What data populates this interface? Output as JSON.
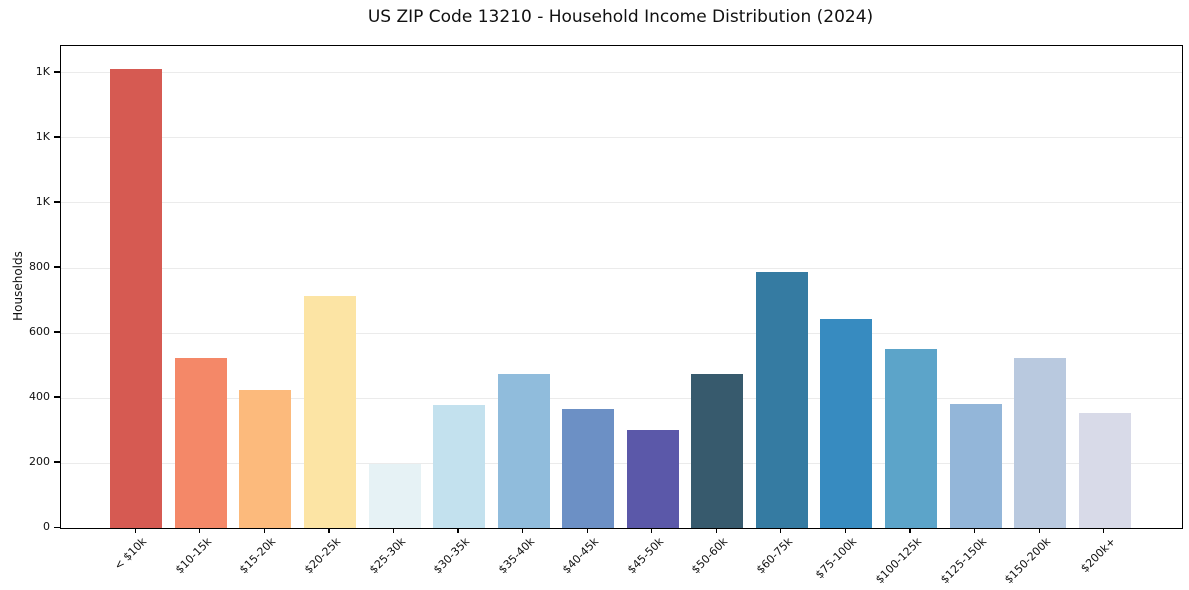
{
  "page": {
    "background": "#ffffff"
  },
  "chart_data": {
    "type": "bar",
    "title": "US ZIP Code 13210 - Household Income Distribution (2024)",
    "xlabel": "",
    "ylabel": "Households",
    "categories": [
      "< $10k",
      "$10-15k",
      "$15-20k",
      "$20-25k",
      "$25-30k",
      "$30-35k",
      "$35-40k",
      "$40-45k",
      "$45-50k",
      "$50-60k",
      "$60-75k",
      "$75-100k",
      "$100-125k",
      "$125-150k",
      "$150-200k",
      "$200k+"
    ],
    "values": [
      1412,
      523,
      425,
      715,
      196,
      378,
      475,
      366,
      302,
      475,
      788,
      644,
      551,
      381,
      523,
      354
    ],
    "bar_colors": [
      "#d65a52",
      "#f48868",
      "#fcba7c",
      "#fce4a4",
      "#e6f2f5",
      "#c3e1ee",
      "#90bcdc",
      "#6c90c5",
      "#5b58a9",
      "#375a6d",
      "#357ba2",
      "#378bc0",
      "#5ca4c9",
      "#93b6d9",
      "#b9c9df",
      "#d8dae8"
    ],
    "ylim": [
      0,
      1483
    ],
    "yticks": [
      {
        "value": 0,
        "label": "0"
      },
      {
        "value": 200,
        "label": "200"
      },
      {
        "value": 400,
        "label": "400"
      },
      {
        "value": 600,
        "label": "600"
      },
      {
        "value": 800,
        "label": "800"
      },
      {
        "value": 1000,
        "label": "1K"
      },
      {
        "value": 1200,
        "label": "1K"
      },
      {
        "value": 1400,
        "label": "1K"
      }
    ],
    "grid": "horizontal",
    "gridline_color": "#ebebeb",
    "frame_color": "#000000",
    "legend": "none",
    "x_tick_rotation_deg": 45
  }
}
